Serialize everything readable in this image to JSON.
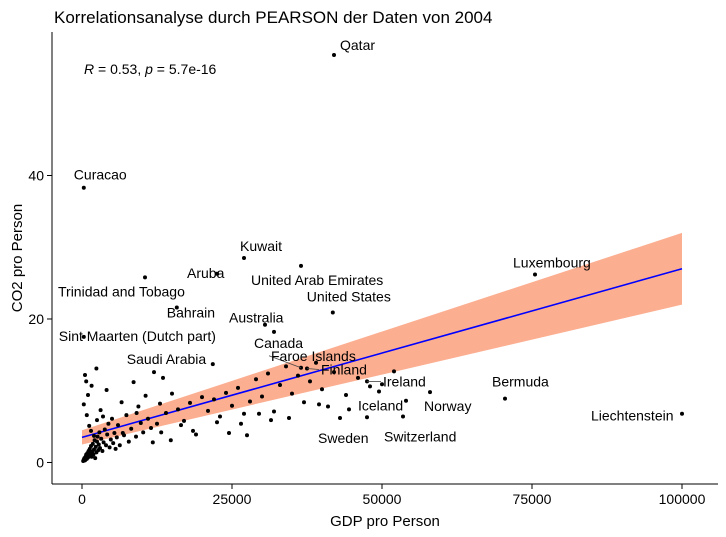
{
  "chart_data": {
    "type": "scatter",
    "title": "Korrelationsanalyse durch PEARSON der Daten von 2004",
    "xlabel": "GDP pro Person",
    "ylabel": "CO2 pro Person",
    "xlim": [
      -5000,
      106000
    ],
    "ylim": [
      -3,
      60
    ],
    "x_ticks": [
      0,
      25000,
      50000,
      75000,
      100000
    ],
    "x_tick_labels": [
      "0",
      "25000",
      "50000",
      "75000",
      "100000"
    ],
    "y_ticks": [
      0,
      20,
      40
    ],
    "y_tick_labels": [
      "0",
      "20",
      "40"
    ],
    "grid": false,
    "annotation": {
      "r_symbol": "R",
      "r_text": " = 0.53, ",
      "p_symbol": "p",
      "p_text": " = 5.7e-16"
    },
    "regression": {
      "x0": 0,
      "y0": 3.5,
      "x1": 100000,
      "y1": 27,
      "ci_lower0": 2.5,
      "ci_upper0": 4.5,
      "ci_lower1": 22,
      "ci_upper1": 32
    },
    "colors": {
      "points": "#000000",
      "line": "#0000ff",
      "ci_band": "#fcae91"
    },
    "labeled_points": [
      {
        "name": "Qatar",
        "x": 42000,
        "y": 56.8
      },
      {
        "name": "Curacao",
        "x": 300,
        "y": 38.3
      },
      {
        "name": "Kuwait",
        "x": 27000,
        "y": 28.5
      },
      {
        "name": "Luxembourg",
        "x": 75500,
        "y": 26.2
      },
      {
        "name": "United Arab Emirates",
        "x": 36500,
        "y": 27.4
      },
      {
        "name": "Aruba",
        "x": 22500,
        "y": 26.3
      },
      {
        "name": "Trinidad and Tobago",
        "x": 10500,
        "y": 25.8
      },
      {
        "name": "Bahrain",
        "x": 15800,
        "y": 21.6
      },
      {
        "name": "United States",
        "x": 41800,
        "y": 20.9
      },
      {
        "name": "Australia",
        "x": 30500,
        "y": 19.2
      },
      {
        "name": "Sint Maarten (Dutch part)",
        "x": 300,
        "y": 17.5
      },
      {
        "name": "Canada",
        "x": 32000,
        "y": 18.2
      },
      {
        "name": "Saudi Arabia",
        "x": 21800,
        "y": 13.7
      },
      {
        "name": "Faroe Islands",
        "x": 36500,
        "y": 13.2
      },
      {
        "name": "Finland",
        "x": 37500,
        "y": 13.1
      },
      {
        "name": "Ireland",
        "x": 47500,
        "y": 11.3
      },
      {
        "name": "Bermuda",
        "x": 70500,
        "y": 8.9
      },
      {
        "name": "Iceland",
        "x": 48000,
        "y": 10.6
      },
      {
        "name": "Norway",
        "x": 58000,
        "y": 9.8
      },
      {
        "name": "Liechtenstein",
        "x": 100000,
        "y": 6.8
      },
      {
        "name": "Sweden",
        "x": 43000,
        "y": 6.2
      },
      {
        "name": "Switzerland",
        "x": 53500,
        "y": 6.4
      }
    ],
    "points": [
      [
        200,
        0.2
      ],
      [
        300,
        0.4
      ],
      [
        400,
        0.6
      ],
      [
        500,
        0.3
      ],
      [
        600,
        0.8
      ],
      [
        700,
        1.1
      ],
      [
        800,
        0.5
      ],
      [
        900,
        1.3
      ],
      [
        1000,
        0.7
      ],
      [
        1100,
        1.6
      ],
      [
        1200,
        0.9
      ],
      [
        1300,
        1.9
      ],
      [
        1400,
        1.2
      ],
      [
        1500,
        2.3
      ],
      [
        1600,
        0.8
      ],
      [
        1700,
        1.5
      ],
      [
        1800,
        2.6
      ],
      [
        1900,
        1.1
      ],
      [
        2000,
        1.8
      ],
      [
        2100,
        3.1
      ],
      [
        2200,
        0.6
      ],
      [
        2300,
        2.2
      ],
      [
        2400,
        1.4
      ],
      [
        2500,
        2.9
      ],
      [
        2600,
        3.6
      ],
      [
        2700,
        1.7
      ],
      [
        2800,
        2.5
      ],
      [
        2900,
        4.2
      ],
      [
        3000,
        2.0
      ],
      [
        3200,
        3.3
      ],
      [
        3400,
        1.6
      ],
      [
        3600,
        2.8
      ],
      [
        3800,
        4.6
      ],
      [
        4000,
        2.4
      ],
      [
        4200,
        3.9
      ],
      [
        4400,
        5.4
      ],
      [
        4600,
        2.1
      ],
      [
        4800,
        3.2
      ],
      [
        5000,
        6.1
      ],
      [
        5200,
        2.7
      ],
      [
        5400,
        4.1
      ],
      [
        5600,
        1.9
      ],
      [
        5800,
        3.5
      ],
      [
        6000,
        5.2
      ],
      [
        6300,
        2.4
      ],
      [
        6600,
        8.4
      ],
      [
        7000,
        3.8
      ],
      [
        7400,
        6.6
      ],
      [
        7800,
        2.9
      ],
      [
        8200,
        4.7
      ],
      [
        8600,
        11.2
      ],
      [
        9000,
        3.6
      ],
      [
        9400,
        7.8
      ],
      [
        9800,
        5.5
      ],
      [
        10200,
        4.2
      ],
      [
        10600,
        9.3
      ],
      [
        11000,
        6.1
      ],
      [
        11500,
        4.8
      ],
      [
        12000,
        12.6
      ],
      [
        12500,
        5.4
      ],
      [
        13000,
        8.2
      ],
      [
        13500,
        11.8
      ],
      [
        14000,
        6.9
      ],
      [
        15000,
        9.6
      ],
      [
        16000,
        7.4
      ],
      [
        17000,
        5.8
      ],
      [
        18000,
        8.3
      ],
      [
        19000,
        3.9
      ],
      [
        20000,
        9.1
      ],
      [
        21000,
        7.2
      ],
      [
        22000,
        8.8
      ],
      [
        23000,
        6.4
      ],
      [
        24000,
        9.7
      ],
      [
        25000,
        7.9
      ],
      [
        26000,
        10.4
      ],
      [
        27000,
        6.8
      ],
      [
        28000,
        8.5
      ],
      [
        29000,
        11.6
      ],
      [
        30000,
        9.2
      ],
      [
        31000,
        12.4
      ],
      [
        32000,
        7.1
      ],
      [
        33000,
        10.8
      ],
      [
        34000,
        13.4
      ],
      [
        35000,
        9.6
      ],
      [
        36000,
        12.1
      ],
      [
        37000,
        8.4
      ],
      [
        38000,
        11.3
      ],
      [
        39000,
        13.9
      ],
      [
        40000,
        10.2
      ],
      [
        41000,
        7.8
      ],
      [
        42000,
        12.6
      ],
      [
        44000,
        9.4
      ],
      [
        46000,
        11.8
      ],
      [
        50000,
        10.9
      ],
      [
        52000,
        12.7
      ],
      [
        54000,
        8.6
      ],
      [
        2000,
        3.7
      ],
      [
        2500,
        5.9
      ],
      [
        3500,
        6.4
      ],
      [
        1500,
        4.4
      ],
      [
        1200,
        5.1
      ],
      [
        800,
        6.6
      ],
      [
        1000,
        9.4
      ],
      [
        700,
        11.3
      ],
      [
        500,
        12.2
      ],
      [
        300,
        8.1
      ],
      [
        1600,
        10.7
      ],
      [
        2400,
        13.1
      ],
      [
        3100,
        7.3
      ],
      [
        4100,
        10.1
      ],
      [
        6800,
        4.1
      ],
      [
        9100,
        6.9
      ],
      [
        11800,
        2.8
      ],
      [
        13200,
        4.2
      ],
      [
        14800,
        3.1
      ],
      [
        16500,
        5.2
      ],
      [
        18500,
        4.4
      ],
      [
        22500,
        5.6
      ],
      [
        24500,
        4.1
      ],
      [
        27500,
        3.8
      ],
      [
        26500,
        5.4
      ],
      [
        29500,
        6.8
      ],
      [
        31500,
        5.9
      ],
      [
        34500,
        6.2
      ],
      [
        39500,
        8.1
      ],
      [
        44500,
        7.4
      ],
      [
        47500,
        6.3
      ],
      [
        49500,
        9.9
      ]
    ]
  }
}
